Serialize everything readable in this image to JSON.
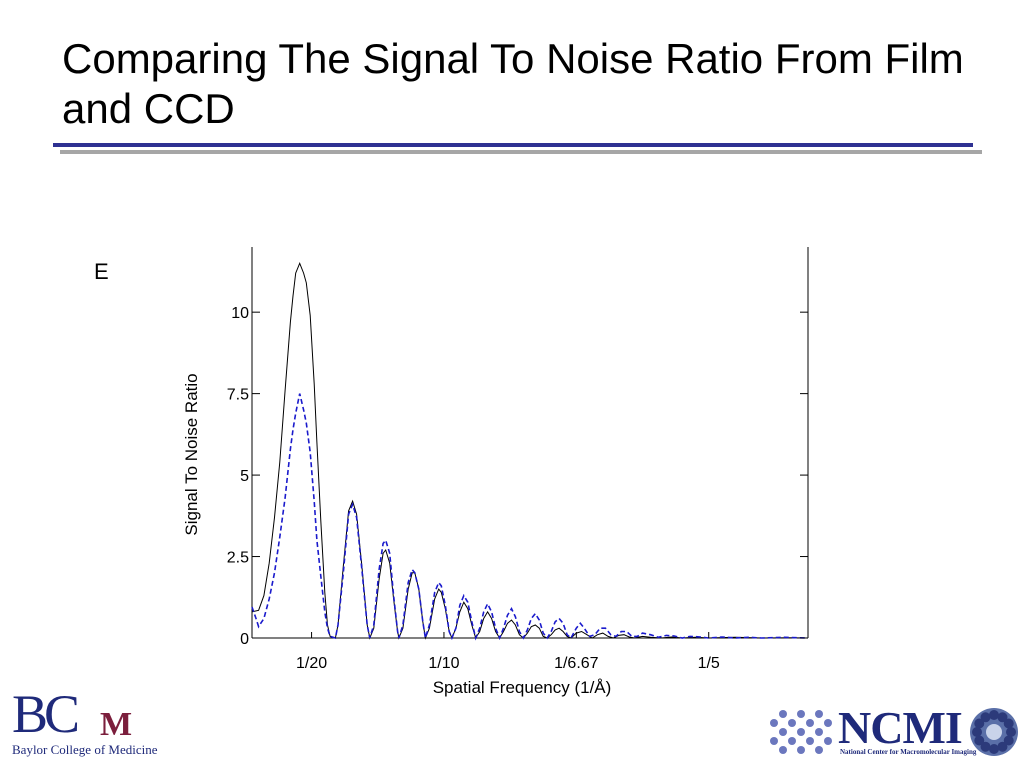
{
  "slide": {
    "title": "Comparing The Signal To Noise Ratio From Film and CCD",
    "panel_label": "E",
    "accent_color": "#2e3192",
    "rule_color": "#a6a6a6"
  },
  "logos": {
    "left": {
      "letters": "BC",
      "mark": "M",
      "name": "Baylor College of Medicine",
      "color": "#1f2a7a",
      "mark_color": "#7b1e3c"
    },
    "right": {
      "letters": "NCMI",
      "name": "National Center for Macromolecular Imaging",
      "color": "#1f2a7a"
    }
  },
  "chart_data": {
    "type": "line",
    "title": "",
    "xlabel": "Spatial Frequency (1/Å)",
    "ylabel": "Signal To Noise Ratio",
    "x_unit": "1/Å",
    "xlim": [
      0.0275,
      0.2375
    ],
    "ylim": [
      0,
      12
    ],
    "x_ticks": [
      {
        "value": 0.05,
        "label": "1/20"
      },
      {
        "value": 0.1,
        "label": "1/10"
      },
      {
        "value": 0.15,
        "label": "1/6.67"
      },
      {
        "value": 0.2,
        "label": "1/5"
      }
    ],
    "y_ticks": [
      {
        "value": 0,
        "label": "0"
      },
      {
        "value": 2.5,
        "label": "2.5"
      },
      {
        "value": 5,
        "label": "5"
      },
      {
        "value": 7.5,
        "label": "7.5"
      },
      {
        "value": 10,
        "label": "10"
      }
    ],
    "grid": false,
    "legend": "none",
    "series": [
      {
        "style": "solid",
        "color": "#000000",
        "points": [
          [
            0.0275,
            0.8
          ],
          [
            0.03,
            0.85
          ],
          [
            0.032,
            1.3
          ],
          [
            0.034,
            2.3
          ],
          [
            0.036,
            3.7
          ],
          [
            0.038,
            5.4
          ],
          [
            0.04,
            7.6
          ],
          [
            0.042,
            9.7
          ],
          [
            0.043,
            10.5
          ],
          [
            0.044,
            11.2
          ],
          [
            0.0455,
            11.5
          ],
          [
            0.047,
            11.2
          ],
          [
            0.048,
            10.9
          ],
          [
            0.0495,
            9.9
          ],
          [
            0.051,
            7.8
          ],
          [
            0.052,
            6.0
          ],
          [
            0.0535,
            3.6
          ],
          [
            0.055,
            1.4
          ],
          [
            0.056,
            0.4
          ],
          [
            0.057,
            0.05
          ],
          [
            0.059,
            0.0
          ],
          [
            0.06,
            0.4
          ],
          [
            0.062,
            2.2
          ],
          [
            0.064,
            3.9
          ],
          [
            0.0655,
            4.2
          ],
          [
            0.067,
            3.8
          ],
          [
            0.069,
            2.2
          ],
          [
            0.071,
            0.4
          ],
          [
            0.072,
            0.0
          ],
          [
            0.0735,
            0.3
          ],
          [
            0.0755,
            1.8
          ],
          [
            0.077,
            2.6
          ],
          [
            0.078,
            2.7
          ],
          [
            0.0795,
            2.3
          ],
          [
            0.081,
            1.2
          ],
          [
            0.0825,
            0.2
          ],
          [
            0.083,
            0.0
          ],
          [
            0.0845,
            0.3
          ],
          [
            0.0865,
            1.5
          ],
          [
            0.088,
            2.0
          ],
          [
            0.089,
            2.0
          ],
          [
            0.0905,
            1.5
          ],
          [
            0.092,
            0.5
          ],
          [
            0.093,
            0.0
          ],
          [
            0.0945,
            0.3
          ],
          [
            0.0965,
            1.2
          ],
          [
            0.098,
            1.5
          ],
          [
            0.099,
            1.4
          ],
          [
            0.1005,
            0.9
          ],
          [
            0.102,
            0.2
          ],
          [
            0.103,
            0.0
          ],
          [
            0.1045,
            0.3
          ],
          [
            0.106,
            0.8
          ],
          [
            0.1075,
            1.1
          ],
          [
            0.109,
            0.9
          ],
          [
            0.1105,
            0.4
          ],
          [
            0.112,
            0.0
          ],
          [
            0.1135,
            0.2
          ],
          [
            0.115,
            0.6
          ],
          [
            0.1165,
            0.8
          ],
          [
            0.118,
            0.6
          ],
          [
            0.1195,
            0.2
          ],
          [
            0.121,
            0.0
          ],
          [
            0.1225,
            0.2
          ],
          [
            0.124,
            0.45
          ],
          [
            0.1255,
            0.55
          ],
          [
            0.127,
            0.4
          ],
          [
            0.1285,
            0.1
          ],
          [
            0.13,
            0.0
          ],
          [
            0.1315,
            0.15
          ],
          [
            0.133,
            0.35
          ],
          [
            0.1345,
            0.4
          ],
          [
            0.136,
            0.3
          ],
          [
            0.1375,
            0.05
          ],
          [
            0.139,
            0.0
          ],
          [
            0.1405,
            0.1
          ],
          [
            0.142,
            0.25
          ],
          [
            0.1435,
            0.3
          ],
          [
            0.145,
            0.2
          ],
          [
            0.1465,
            0.05
          ],
          [
            0.148,
            0.0
          ],
          [
            0.15,
            0.15
          ],
          [
            0.152,
            0.2
          ],
          [
            0.154,
            0.1
          ],
          [
            0.156,
            0.0
          ],
          [
            0.158,
            0.1
          ],
          [
            0.16,
            0.15
          ],
          [
            0.162,
            0.05
          ],
          [
            0.164,
            0.0
          ],
          [
            0.166,
            0.08
          ],
          [
            0.168,
            0.1
          ],
          [
            0.17,
            0.03
          ],
          [
            0.172,
            0.0
          ],
          [
            0.175,
            0.05
          ],
          [
            0.178,
            0.02
          ],
          [
            0.182,
            0.0
          ],
          [
            0.186,
            0.03
          ],
          [
            0.19,
            0.0
          ],
          [
            0.195,
            0.02
          ],
          [
            0.2,
            0.0
          ],
          [
            0.21,
            0.02
          ],
          [
            0.22,
            0.0
          ],
          [
            0.23,
            0.01
          ],
          [
            0.2375,
            0.0
          ]
        ]
      },
      {
        "style": "dashed",
        "color": "#1a1acc",
        "points": [
          [
            0.0275,
            0.95
          ],
          [
            0.029,
            0.6
          ],
          [
            0.03,
            0.35
          ],
          [
            0.032,
            0.6
          ],
          [
            0.034,
            1.2
          ],
          [
            0.036,
            2.0
          ],
          [
            0.038,
            3.1
          ],
          [
            0.04,
            4.3
          ],
          [
            0.042,
            5.8
          ],
          [
            0.043,
            6.4
          ],
          [
            0.044,
            6.9
          ],
          [
            0.0455,
            7.5
          ],
          [
            0.047,
            7.0
          ],
          [
            0.048,
            6.6
          ],
          [
            0.0495,
            5.7
          ],
          [
            0.051,
            4.2
          ],
          [
            0.052,
            3.0
          ],
          [
            0.0535,
            1.9
          ],
          [
            0.055,
            0.8
          ],
          [
            0.056,
            0.3
          ],
          [
            0.057,
            0.05
          ],
          [
            0.059,
            0.0
          ],
          [
            0.06,
            0.4
          ],
          [
            0.062,
            2.0
          ],
          [
            0.064,
            3.8
          ],
          [
            0.0655,
            4.1
          ],
          [
            0.067,
            3.7
          ],
          [
            0.069,
            2.1
          ],
          [
            0.071,
            0.4
          ],
          [
            0.072,
            0.0
          ],
          [
            0.0735,
            0.4
          ],
          [
            0.0755,
            2.1
          ],
          [
            0.077,
            2.9
          ],
          [
            0.078,
            3.0
          ],
          [
            0.0795,
            2.6
          ],
          [
            0.081,
            1.3
          ],
          [
            0.0825,
            0.2
          ],
          [
            0.083,
            0.0
          ],
          [
            0.0845,
            0.4
          ],
          [
            0.0865,
            1.7
          ],
          [
            0.088,
            2.1
          ],
          [
            0.089,
            2.0
          ],
          [
            0.0905,
            1.5
          ],
          [
            0.092,
            0.5
          ],
          [
            0.093,
            0.0
          ],
          [
            0.0945,
            0.4
          ],
          [
            0.0965,
            1.4
          ],
          [
            0.098,
            1.7
          ],
          [
            0.099,
            1.6
          ],
          [
            0.1005,
            1.0
          ],
          [
            0.102,
            0.2
          ],
          [
            0.103,
            0.0
          ],
          [
            0.1045,
            0.3
          ],
          [
            0.106,
            1.0
          ],
          [
            0.1075,
            1.3
          ],
          [
            0.109,
            1.1
          ],
          [
            0.1105,
            0.5
          ],
          [
            0.112,
            0.0
          ],
          [
            0.1135,
            0.3
          ],
          [
            0.115,
            0.8
          ],
          [
            0.1165,
            1.05
          ],
          [
            0.118,
            0.8
          ],
          [
            0.1195,
            0.3
          ],
          [
            0.121,
            0.0
          ],
          [
            0.1225,
            0.3
          ],
          [
            0.124,
            0.7
          ],
          [
            0.1255,
            0.9
          ],
          [
            0.127,
            0.65
          ],
          [
            0.1285,
            0.2
          ],
          [
            0.13,
            0.0
          ],
          [
            0.1315,
            0.25
          ],
          [
            0.133,
            0.6
          ],
          [
            0.1345,
            0.75
          ],
          [
            0.136,
            0.55
          ],
          [
            0.1375,
            0.15
          ],
          [
            0.139,
            0.0
          ],
          [
            0.1405,
            0.2
          ],
          [
            0.142,
            0.5
          ],
          [
            0.1435,
            0.6
          ],
          [
            0.145,
            0.45
          ],
          [
            0.1465,
            0.1
          ],
          [
            0.148,
            0.0
          ],
          [
            0.15,
            0.3
          ],
          [
            0.1515,
            0.45
          ],
          [
            0.153,
            0.3
          ],
          [
            0.155,
            0.05
          ],
          [
            0.157,
            0.1
          ],
          [
            0.159,
            0.3
          ],
          [
            0.161,
            0.3
          ],
          [
            0.163,
            0.1
          ],
          [
            0.165,
            0.05
          ],
          [
            0.167,
            0.2
          ],
          [
            0.169,
            0.2
          ],
          [
            0.171,
            0.05
          ],
          [
            0.173,
            0.05
          ],
          [
            0.175,
            0.15
          ],
          [
            0.178,
            0.1
          ],
          [
            0.181,
            0.02
          ],
          [
            0.184,
            0.08
          ],
          [
            0.187,
            0.06
          ],
          [
            0.19,
            0.0
          ],
          [
            0.193,
            0.05
          ],
          [
            0.197,
            0.03
          ],
          [
            0.2,
            0.0
          ],
          [
            0.205,
            0.03
          ],
          [
            0.21,
            0.0
          ],
          [
            0.215,
            0.02
          ],
          [
            0.22,
            0.0
          ],
          [
            0.228,
            0.02
          ],
          [
            0.2375,
            0.0
          ]
        ]
      }
    ]
  }
}
